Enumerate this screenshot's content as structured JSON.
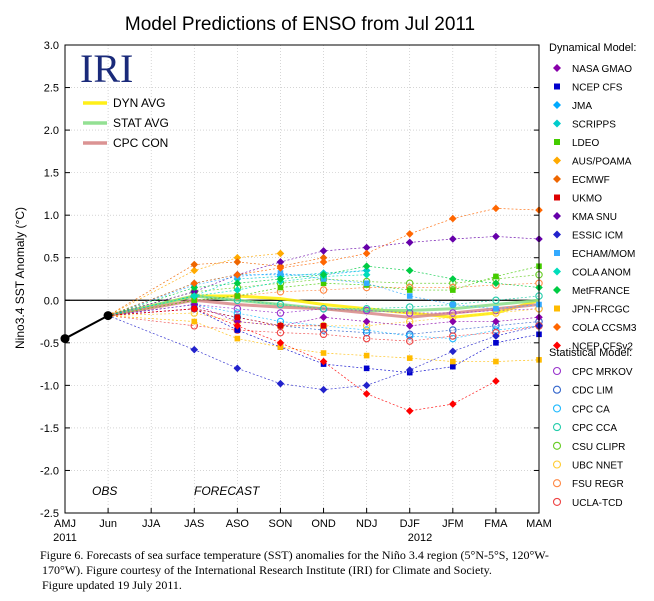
{
  "caption": {
    "line1": "Figure 6. Forecasts of sea surface temperature (SST) anomalies for the Niño 3.4 region (5°N-5°S, 120°W-",
    "line2": "170°W).  Figure courtesy of the International Research Institute (IRI) for Climate and Society.",
    "line3": "Figure updated 19 July 2011."
  },
  "chart_data": {
    "type": "line",
    "title": "Model Predictions of ENSO from Jul 2011",
    "ylabel": "Nino3.4 SST Anomaly (°C)",
    "logo": "IRI",
    "obs_label": "OBS",
    "forecast_label": "FORECAST",
    "year_labels": [
      "2011",
      "2012"
    ],
    "categories": [
      "AMJ",
      "Jun",
      "JJA",
      "JAS",
      "ASO",
      "SON",
      "OND",
      "NDJ",
      "DJF",
      "JFM",
      "FMA",
      "MAM"
    ],
    "ylim": [
      -2.5,
      3.0
    ],
    "yticks": [
      -2.5,
      -2.0,
      -1.5,
      -1.0,
      -0.5,
      0.0,
      0.5,
      1.0,
      1.5,
      2.0,
      2.5,
      3.0
    ],
    "ytick_labels": [
      "-2.5",
      "-2.0",
      "-1.5",
      "-1.0",
      "-0.5",
      "0.0",
      "0.5",
      "1.0",
      "1.5",
      "2.0",
      "2.5",
      "3.0"
    ],
    "grid": true,
    "observed": {
      "values": [
        -0.45,
        -0.18
      ],
      "color": "#000000"
    },
    "dynamical_header": "Dynamical Model:",
    "statistical_header": "Statistical Model:",
    "averages": [
      {
        "name": "DYN AVG",
        "color": "#ffee00",
        "values": [
          null,
          -0.18,
          null,
          0.05,
          0.05,
          0.02,
          -0.05,
          -0.1,
          -0.15,
          -0.2,
          -0.15,
          0.0
        ]
      },
      {
        "name": "STAT AVG",
        "color": "#88dd88",
        "values": [
          null,
          -0.18,
          null,
          0.05,
          0.0,
          -0.05,
          -0.1,
          -0.12,
          -0.12,
          -0.1,
          -0.05,
          0.0
        ]
      },
      {
        "name": "CPC CON",
        "color": "#d88888",
        "values": [
          null,
          -0.18,
          null,
          0.0,
          -0.05,
          -0.08,
          -0.1,
          -0.15,
          -0.2,
          -0.15,
          -0.1,
          -0.05
        ]
      }
    ],
    "dynamical": [
      {
        "name": "NASA GMAO",
        "color": "#8800aa",
        "values": [
          null,
          null,
          null,
          -0.05,
          -0.25,
          -0.3,
          -0.2,
          -0.25,
          -0.3,
          -0.25,
          -0.25,
          -0.2
        ]
      },
      {
        "name": "NCEP CFS",
        "color": "#0000cc",
        "values": [
          null,
          null,
          null,
          -0.1,
          -0.35,
          -0.55,
          -0.75,
          -0.8,
          -0.85,
          -0.78,
          -0.5,
          -0.4
        ]
      },
      {
        "name": "JMA",
        "color": "#00aaff",
        "values": [
          null,
          null,
          null,
          0.2,
          0.3,
          0.3,
          0.3,
          0.35,
          null,
          null,
          null,
          null
        ]
      },
      {
        "name": "SCRIPPS",
        "color": "#00cccc",
        "values": [
          null,
          null,
          null,
          0.05,
          0.25,
          0.28,
          0.32,
          0.35,
          null,
          null,
          null,
          null
        ]
      },
      {
        "name": "LDEO",
        "color": "#44cc00",
        "values": [
          null,
          null,
          null,
          0.0,
          0.05,
          0.15,
          0.2,
          0.18,
          0.12,
          0.12,
          0.28,
          0.4
        ]
      },
      {
        "name": "AUS/POAMA",
        "color": "#ffaa00",
        "values": [
          null,
          null,
          null,
          0.35,
          0.5,
          0.55,
          null,
          null,
          null,
          null,
          null,
          null
        ]
      },
      {
        "name": "ECMWF",
        "color": "#ee6600",
        "values": [
          null,
          null,
          null,
          0.42,
          0.45,
          0.4,
          0.5,
          null,
          null,
          null,
          null,
          null
        ]
      },
      {
        "name": "UKMO",
        "color": "#dd0000",
        "values": [
          null,
          null,
          null,
          -0.1,
          -0.2,
          -0.3,
          -0.3,
          null,
          null,
          null,
          null,
          null
        ]
      },
      {
        "name": "KMA SNU",
        "color": "#6600aa",
        "values": [
          null,
          null,
          null,
          0.1,
          0.3,
          0.45,
          0.58,
          0.62,
          0.68,
          0.72,
          0.75,
          0.72
        ]
      },
      {
        "name": "ESSIC ICM",
        "color": "#2222cc",
        "values": [
          null,
          null,
          null,
          -0.58,
          -0.8,
          -0.98,
          -1.05,
          -1.0,
          -0.82,
          -0.6,
          -0.42,
          -0.3
        ]
      },
      {
        "name": "ECHAM/MOM",
        "color": "#33aaff",
        "values": [
          null,
          null,
          null,
          0.18,
          0.28,
          0.32,
          0.25,
          0.2,
          0.05,
          -0.05,
          -0.1,
          -0.05
        ]
      },
      {
        "name": "COLA ANOM",
        "color": "#00ddbb",
        "values": [
          null,
          null,
          null,
          0.05,
          0.12,
          0.22,
          0.28,
          0.3,
          null,
          null,
          null,
          null
        ]
      },
      {
        "name": "MetFRANCE",
        "color": "#00cc44",
        "values": [
          null,
          null,
          null,
          0.15,
          0.2,
          0.25,
          0.3,
          0.4,
          0.35,
          0.25,
          0.2,
          0.15
        ]
      },
      {
        "name": "JPN-FRCGC",
        "color": "#ffbb00",
        "values": [
          null,
          null,
          null,
          -0.25,
          -0.45,
          -0.55,
          -0.62,
          -0.65,
          -0.68,
          -0.72,
          -0.72,
          -0.7
        ]
      },
      {
        "name": "COLA CCSM3",
        "color": "#ff6600",
        "values": [
          null,
          null,
          null,
          0.2,
          0.3,
          0.38,
          0.45,
          0.55,
          0.78,
          0.96,
          1.08,
          1.06
        ]
      },
      {
        "name": "NCEP CFSv2",
        "color": "#ff0000",
        "values": [
          null,
          null,
          null,
          -0.1,
          -0.3,
          -0.5,
          -0.72,
          -1.1,
          -1.3,
          -1.22,
          -0.95,
          null
        ]
      }
    ],
    "statistical": [
      {
        "name": "CPC MRKOV",
        "color": "#9933cc",
        "values": [
          null,
          null,
          null,
          -0.05,
          -0.1,
          -0.15,
          -0.1,
          -0.12,
          -0.15,
          -0.15,
          -0.12,
          -0.1
        ]
      },
      {
        "name": "CDC LIM",
        "color": "#3366cc",
        "values": [
          null,
          null,
          null,
          -0.1,
          -0.2,
          -0.3,
          -0.35,
          -0.38,
          -0.4,
          -0.35,
          -0.3,
          -0.25
        ]
      },
      {
        "name": "CPC CA",
        "color": "#22bbff",
        "values": [
          null,
          null,
          null,
          -0.05,
          -0.15,
          -0.25,
          -0.3,
          -0.35,
          -0.42,
          -0.45,
          -0.35,
          -0.3
        ]
      },
      {
        "name": "CPC CCA",
        "color": "#22ccaa",
        "values": [
          null,
          null,
          null,
          0.05,
          0.0,
          -0.05,
          -0.1,
          -0.1,
          -0.08,
          -0.05,
          0.0,
          0.05
        ]
      },
      {
        "name": "CSU CLIPR",
        "color": "#66cc22",
        "values": [
          null,
          null,
          null,
          0.1,
          0.15,
          0.2,
          0.25,
          0.22,
          0.2,
          0.2,
          0.25,
          0.3
        ]
      },
      {
        "name": "UBC NNET",
        "color": "#ffcc33",
        "values": [
          null,
          null,
          null,
          -0.15,
          -0.25,
          -0.3,
          -0.3,
          -0.3,
          -0.25,
          -0.2,
          -0.15,
          -0.1
        ]
      },
      {
        "name": "FSU REGR",
        "color": "#ff8844",
        "values": [
          null,
          null,
          null,
          0.0,
          0.05,
          0.1,
          0.12,
          0.15,
          0.15,
          0.15,
          0.18,
          0.2
        ]
      },
      {
        "name": "UCLA-TCD",
        "color": "#ee4444",
        "values": [
          null,
          null,
          null,
          -0.3,
          -0.35,
          -0.38,
          -0.4,
          -0.45,
          -0.48,
          -0.42,
          -0.38,
          -0.3
        ]
      }
    ]
  }
}
